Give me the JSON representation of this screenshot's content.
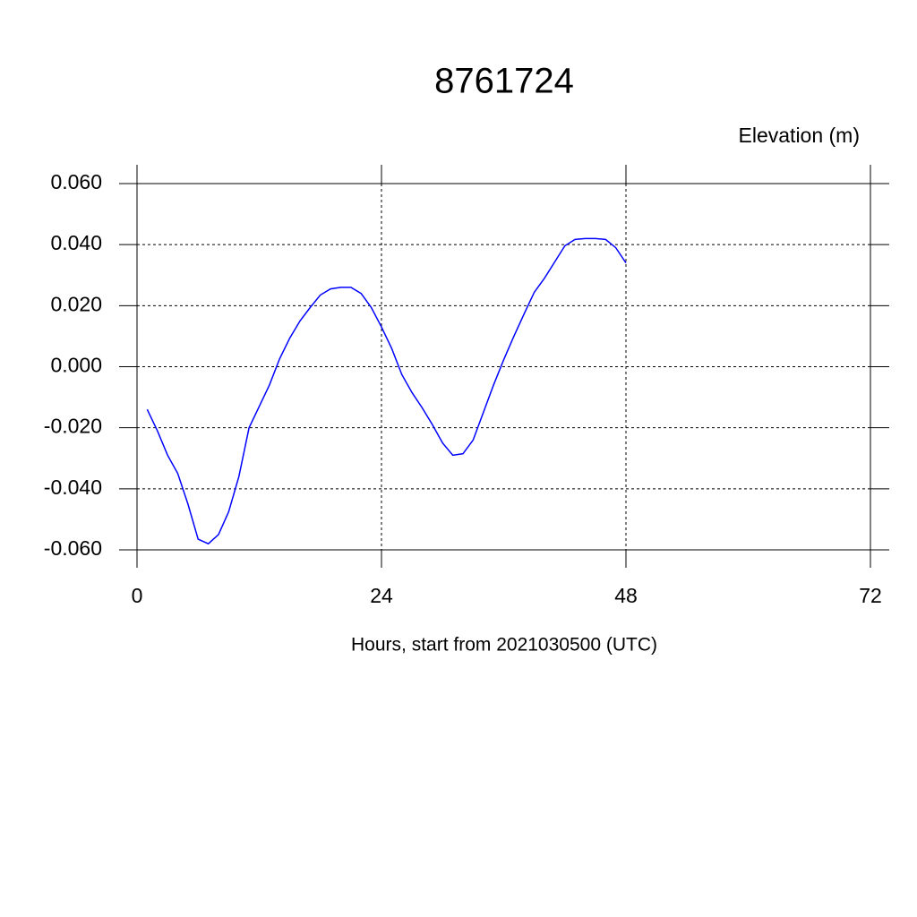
{
  "chart_data": {
    "type": "line",
    "title": "8761724",
    "subtitle": "Elevation (m)",
    "x_label": "Hours, start from 2021030500 (UTC)",
    "xlim": [
      0,
      72
    ],
    "xticks": [
      0,
      24,
      48,
      72
    ],
    "ylim": [
      -0.06,
      0.06
    ],
    "yticks": [
      {
        "value": -0.06,
        "label": "-0.060"
      },
      {
        "value": -0.04,
        "label": "-0.040"
      },
      {
        "value": -0.02,
        "label": "-0.020"
      },
      {
        "value": 0,
        "label": "0.000"
      },
      {
        "value": 0.02,
        "label": "0.020"
      },
      {
        "value": 0.04,
        "label": "0.040"
      },
      {
        "value": 0.06,
        "label": "0.060"
      }
    ],
    "grid": true,
    "x": [
      1,
      2,
      3,
      4,
      5,
      6,
      7,
      8,
      9,
      10,
      11,
      12,
      13,
      14,
      15,
      16,
      17,
      18,
      19,
      20,
      21,
      22,
      23,
      24,
      25,
      26,
      27,
      28,
      29,
      30,
      31,
      32,
      33,
      34,
      35,
      36,
      37,
      38,
      39,
      40,
      41,
      42,
      43,
      44,
      45,
      46,
      47,
      48
    ],
    "series": [
      {
        "color": "#0000ff",
        "values": [
          -0.014,
          -0.021,
          -0.029,
          -0.035,
          -0.045,
          -0.0565,
          -0.058,
          -0.055,
          -0.0475,
          -0.036,
          -0.02,
          -0.013,
          -0.006,
          0.0026,
          0.0094,
          0.015,
          0.0194,
          0.0235,
          0.0255,
          0.026,
          0.026,
          0.024,
          0.0194,
          0.013,
          0.006,
          -0.0026,
          -0.0085,
          -0.0135,
          -0.019,
          -0.025,
          -0.029,
          -0.0285,
          -0.024,
          -0.015,
          -0.006,
          0.0023,
          0.01,
          0.0173,
          0.0244,
          0.029,
          0.0343,
          0.0396,
          0.0417,
          0.042,
          0.042,
          0.0417,
          0.039,
          0.034
        ]
      }
    ]
  }
}
